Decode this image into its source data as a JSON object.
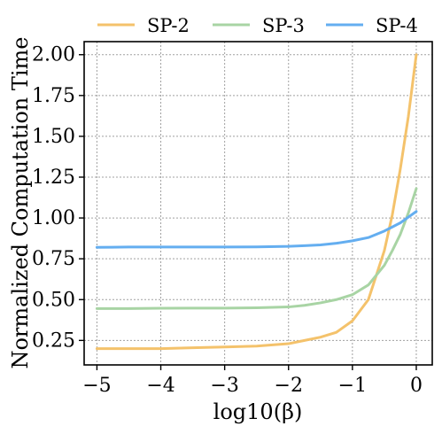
{
  "chart_data": {
    "type": "line",
    "xlabel": "log10(β)",
    "ylabel": "Normalized Computation Time",
    "xlim": [
      -5.2,
      0.25
    ],
    "ylim": [
      0.1,
      2.08
    ],
    "x_ticks": [
      -5,
      -4,
      -3,
      -2,
      -1,
      0
    ],
    "x_tick_labels": [
      "−5",
      "−4",
      "−3",
      "−2",
      "−1",
      "0"
    ],
    "y_ticks": [
      0.25,
      0.5,
      0.75,
      1.0,
      1.25,
      1.5,
      1.75,
      2.0
    ],
    "y_tick_labels": [
      "0.25",
      "0.50",
      "0.75",
      "1.00",
      "1.25",
      "1.50",
      "1.75",
      "2.00"
    ],
    "grid": true,
    "legend_position": "top-outside",
    "x": [
      -5.0,
      -4.5,
      -4.0,
      -3.5,
      -3.0,
      -2.5,
      -2.0,
      -1.75,
      -1.5,
      -1.25,
      -1.0,
      -0.75,
      -0.5,
      -0.375,
      -0.25,
      -0.125,
      0.0
    ],
    "series": [
      {
        "name": "SP-2",
        "color": "#f4c26b",
        "values": [
          0.2,
          0.2,
          0.2,
          0.205,
          0.21,
          0.215,
          0.23,
          0.25,
          0.27,
          0.3,
          0.37,
          0.5,
          0.8,
          1.02,
          1.3,
          1.62,
          2.0
        ]
      },
      {
        "name": "SP-3",
        "color": "#a8d4a4",
        "values": [
          0.445,
          0.445,
          0.447,
          0.448,
          0.448,
          0.45,
          0.455,
          0.465,
          0.48,
          0.5,
          0.53,
          0.59,
          0.71,
          0.8,
          0.9,
          1.03,
          1.18
        ]
      },
      {
        "name": "SP-4",
        "color": "#64aef0",
        "values": [
          0.82,
          0.822,
          0.822,
          0.822,
          0.822,
          0.823,
          0.826,
          0.83,
          0.835,
          0.845,
          0.86,
          0.88,
          0.92,
          0.945,
          0.97,
          1.005,
          1.04
        ]
      }
    ]
  }
}
